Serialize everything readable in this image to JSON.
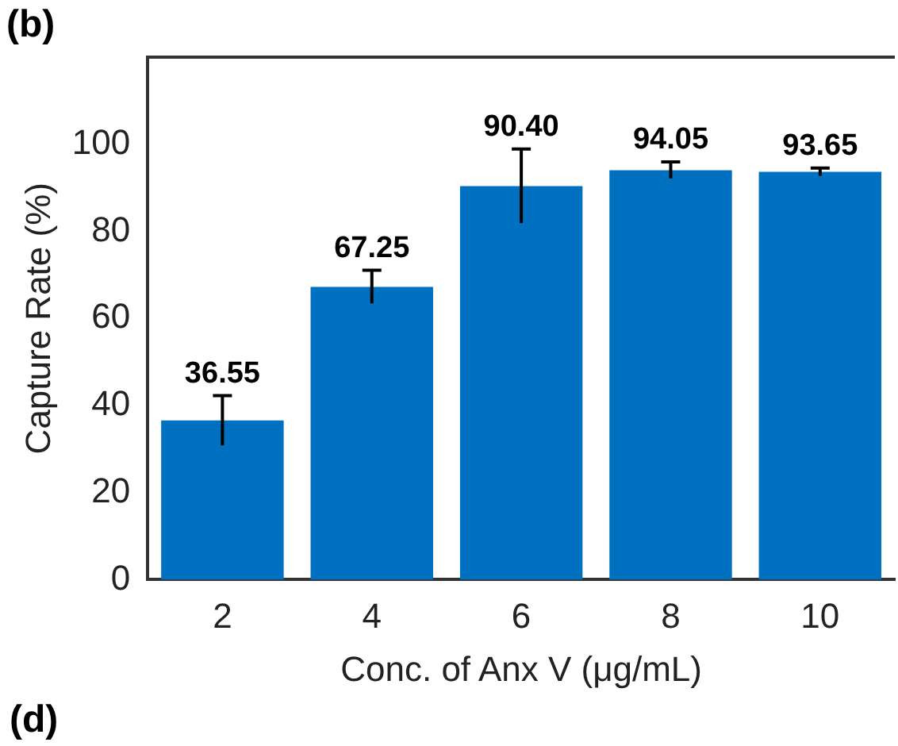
{
  "chart_data": {
    "type": "bar",
    "title": "(b)",
    "xlabel": "Conc. of Anx V (μg/mL)",
    "ylabel": "Capture Rate (%)",
    "categories": [
      "2",
      "4",
      "6",
      "8",
      "10"
    ],
    "values": [
      36.55,
      67.25,
      90.4,
      94.05,
      93.65
    ],
    "errors": [
      5.7,
      3.8,
      8.5,
      1.9,
      0.9
    ],
    "color": "#0070c0",
    "ylim": [
      0,
      120
    ],
    "yticks": [
      0,
      20,
      40,
      60,
      80,
      100
    ],
    "value_labels": [
      "36.55",
      "67.25",
      "90.40",
      "94.05",
      "93.65"
    ],
    "grid": false,
    "legend": false,
    "annotations": [
      "(d)"
    ]
  }
}
